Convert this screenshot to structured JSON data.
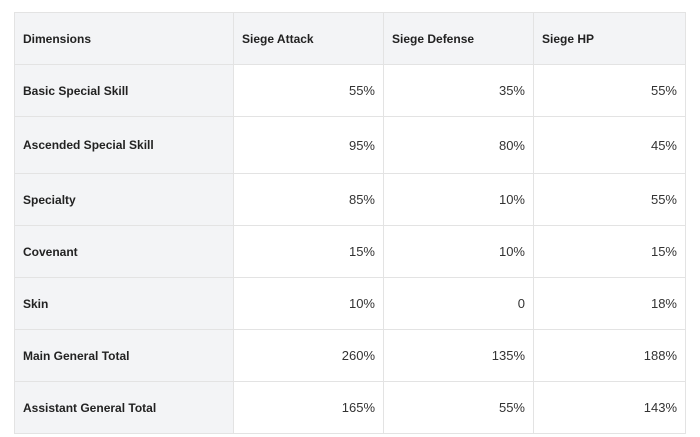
{
  "table": {
    "headers": [
      "Dimensions",
      "Siege Attack",
      "Siege Defense",
      "Siege HP"
    ],
    "rows": [
      {
        "label": "Basic Special Skill",
        "values": [
          "55%",
          "35%",
          "55%"
        ]
      },
      {
        "label": "Ascended Special Skill",
        "values": [
          "95%",
          "80%",
          "45%"
        ]
      },
      {
        "label": "Specialty",
        "values": [
          "85%",
          "10%",
          "55%"
        ]
      },
      {
        "label": "Covenant",
        "values": [
          "15%",
          "10%",
          "15%"
        ]
      },
      {
        "label": "Skin",
        "values": [
          "10%",
          "0",
          "18%"
        ]
      },
      {
        "label": "Main General Total",
        "values": [
          "260%",
          "135%",
          "188%"
        ]
      },
      {
        "label": "Assistant General Total",
        "values": [
          "165%",
          "55%",
          "143%"
        ]
      }
    ]
  }
}
